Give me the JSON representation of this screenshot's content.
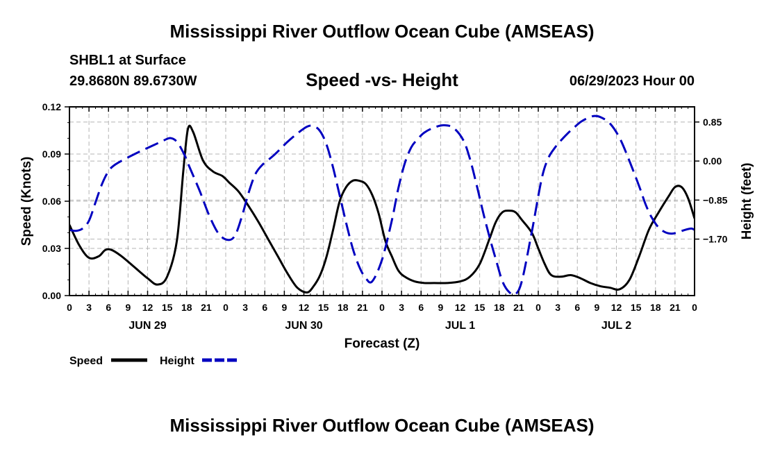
{
  "title": "Mississippi River Outflow Ocean Cube (AMSEAS)",
  "station": "SHBL1 at Surface",
  "coords": "29.8680N  89.6730W",
  "subtitle": "Speed -vs- Height",
  "date": "06/29/2023 Hour 00",
  "bottom_title": "Mississippi River Outflow Ocean Cube (AMSEAS)",
  "colors": {
    "speed": "#000000",
    "height": "#0000c0",
    "grid": "#b4b4b4"
  },
  "chart_data": {
    "type": "line",
    "title": "Speed -vs- Height",
    "xlabel": "Forecast (Z)",
    "ylabel": "Speed (Knots)",
    "y2label": "Height (feet)",
    "xlim": [
      0,
      96
    ],
    "ylim": [
      0,
      0.12
    ],
    "y2lim": [
      -2.93,
      1.18
    ],
    "xticks": [
      0,
      3,
      6,
      9,
      12,
      15,
      18,
      21,
      24,
      27,
      30,
      33,
      36,
      39,
      42,
      45,
      48,
      51,
      54,
      57,
      60,
      63,
      66,
      69,
      72,
      75,
      78,
      81,
      84,
      87,
      90,
      93,
      96
    ],
    "xtick_labels": [
      "0",
      "3",
      "6",
      "9",
      "12",
      "15",
      "18",
      "21",
      "0",
      "3",
      "6",
      "9",
      "12",
      "15",
      "18",
      "21",
      "0",
      "3",
      "6",
      "9",
      "12",
      "15",
      "18",
      "21",
      "0",
      "3",
      "6",
      "9",
      "12",
      "15",
      "18",
      "21",
      "0"
    ],
    "date_labels": [
      {
        "x": 12,
        "text": "JUN 29"
      },
      {
        "x": 36,
        "text": "JUN 30"
      },
      {
        "x": 60,
        "text": "JUL 1"
      },
      {
        "x": 84,
        "text": "JUL 2"
      }
    ],
    "yticks": [
      0,
      0.03,
      0.06,
      0.09,
      0.12
    ],
    "ytick_labels": [
      "0.00",
      "0.03",
      "0.06",
      "0.09",
      "0.12"
    ],
    "y2ticks": [
      0.85,
      0.0,
      -0.85,
      -1.7
    ],
    "y2tick_labels": [
      "0.85",
      "0.00",
      "−0.85",
      "−1.70"
    ],
    "grid": true,
    "legend": [
      {
        "name": "Speed",
        "style": "solid"
      },
      {
        "name": "Height",
        "style": "dashed"
      }
    ],
    "series": [
      {
        "name": "Speed",
        "axis": "left",
        "x": [
          0,
          1.5,
          3,
          4.5,
          5.5,
          6.5,
          8,
          10,
          12,
          13.5,
          15,
          16.5,
          17.5,
          18.2,
          19,
          20.5,
          22,
          23.5,
          24.5,
          26,
          27.5,
          29,
          30.5,
          32,
          33.5,
          35,
          36.5,
          37.5,
          38.5,
          39.5,
          40.5,
          41.5,
          42.5,
          43.5,
          44.5,
          45.5,
          46.5,
          47.5,
          48.5,
          49.5,
          50.5,
          51.5,
          53,
          54.5,
          56,
          58,
          60,
          61.5,
          63,
          64.5,
          65.5,
          66.5,
          67.5,
          68.5,
          69.5,
          71,
          72,
          73,
          74,
          75.5,
          77,
          78.5,
          80,
          81.5,
          83,
          84.5,
          86,
          87.5,
          89,
          90.5,
          92,
          93,
          94,
          95,
          96
        ],
        "values": [
          0.045,
          0.032,
          0.024,
          0.025,
          0.029,
          0.029,
          0.025,
          0.018,
          0.011,
          0.007,
          0.012,
          0.035,
          0.08,
          0.106,
          0.104,
          0.086,
          0.079,
          0.076,
          0.072,
          0.066,
          0.057,
          0.047,
          0.036,
          0.025,
          0.014,
          0.005,
          0.002,
          0.006,
          0.013,
          0.025,
          0.042,
          0.06,
          0.069,
          0.073,
          0.073,
          0.071,
          0.064,
          0.052,
          0.035,
          0.025,
          0.016,
          0.012,
          0.009,
          0.008,
          0.008,
          0.008,
          0.009,
          0.012,
          0.02,
          0.036,
          0.047,
          0.053,
          0.054,
          0.053,
          0.048,
          0.04,
          0.03,
          0.02,
          0.013,
          0.012,
          0.013,
          0.011,
          0.008,
          0.006,
          0.005,
          0.004,
          0.01,
          0.025,
          0.042,
          0.053,
          0.063,
          0.069,
          0.069,
          0.062,
          0.049
        ]
      },
      {
        "name": "Height",
        "axis": "right",
        "x": [
          0,
          1,
          2,
          3,
          4,
          5,
          6,
          7,
          9,
          11,
          13,
          14.5,
          15.5,
          16.5,
          17.5,
          18.5,
          20,
          21.5,
          23,
          24.5,
          25.5,
          26.5,
          27.5,
          28.5,
          29.5,
          30.5,
          31.5,
          32.5,
          33.5,
          35,
          36.5,
          37.5,
          38.5,
          39.5,
          40.5,
          41.5,
          42.5,
          43.5,
          44.5,
          45.5,
          46.5,
          48,
          49.5,
          50.5,
          51.5,
          52.5,
          53.5,
          54.5,
          56,
          57.5,
          59,
          60.5,
          61.5,
          62.5,
          63.5,
          64.5,
          65.5,
          66.5,
          67.5,
          68.5,
          69.5,
          71,
          72.5,
          73.5,
          74.5,
          75.5,
          76.5,
          77.5,
          78.5,
          79.5,
          80.5,
          81.5,
          83,
          84.5,
          86,
          87.5,
          88.5,
          89.5,
          90.5,
          91.5,
          92.5,
          93.5,
          94.5,
          95.5,
          96
        ],
        "values": [
          -1.5,
          -1.52,
          -1.47,
          -1.3,
          -0.9,
          -0.5,
          -0.22,
          -0.08,
          0.08,
          0.22,
          0.35,
          0.45,
          0.5,
          0.42,
          0.18,
          -0.15,
          -0.65,
          -1.2,
          -1.6,
          -1.72,
          -1.6,
          -1.2,
          -0.7,
          -0.3,
          -0.1,
          0.02,
          0.14,
          0.28,
          0.42,
          0.6,
          0.75,
          0.76,
          0.65,
          0.35,
          -0.15,
          -0.75,
          -1.35,
          -1.9,
          -2.3,
          -2.55,
          -2.62,
          -2.15,
          -1.3,
          -0.6,
          -0.05,
          0.3,
          0.48,
          0.62,
          0.73,
          0.78,
          0.72,
          0.45,
          0.05,
          -0.5,
          -1.1,
          -1.65,
          -2.15,
          -2.62,
          -2.85,
          -2.9,
          -2.6,
          -1.55,
          -0.4,
          0.05,
          0.28,
          0.45,
          0.6,
          0.73,
          0.85,
          0.93,
          0.98,
          0.96,
          0.82,
          0.5,
          0.0,
          -0.55,
          -0.95,
          -1.25,
          -1.45,
          -1.55,
          -1.58,
          -1.55,
          -1.5,
          -1.47,
          -1.5
        ]
      }
    ]
  }
}
